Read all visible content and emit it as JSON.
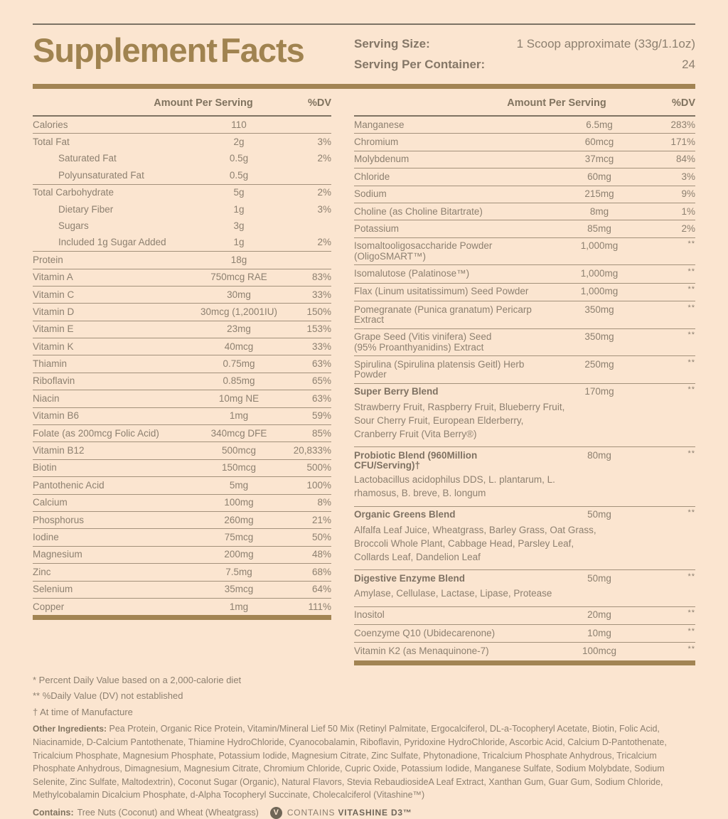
{
  "page": {
    "background": "#fbe5d0",
    "accent_gold": "#a28453",
    "text_color": "#8d8070"
  },
  "header": {
    "title": "Supplement Facts",
    "serving_size_label": "Serving Size:",
    "serving_size_value": "1 Scoop approximate (33g/1.1oz)",
    "servings_per_container_label": "Serving Per Container:",
    "servings_per_container_value": "24"
  },
  "column_headers": {
    "amount": "Amount Per Serving",
    "dv": "%DV"
  },
  "left_rows": [
    {
      "name": "Calories",
      "amount": "110",
      "dv": ""
    },
    {
      "name": "Total Fat",
      "amount": "2g",
      "dv": "3%"
    },
    {
      "name": "Saturated Fat",
      "amount": "0.5g",
      "dv": "2%",
      "indent": true
    },
    {
      "name": "Polyunsaturated Fat",
      "amount": "0.5g",
      "dv": "",
      "indent": true
    },
    {
      "name": "Total Carbohydrate",
      "amount": "5g",
      "dv": "2%"
    },
    {
      "name": "Dietary Fiber",
      "amount": "1g",
      "dv": "3%",
      "indent": true
    },
    {
      "name": "Sugars",
      "amount": "3g",
      "dv": "",
      "indent": true
    },
    {
      "name": "Included 1g Sugar Added",
      "amount": "1g",
      "dv": "2%",
      "indent": true
    },
    {
      "name": "Protein",
      "amount": "18g",
      "dv": ""
    },
    {
      "name": "Vitamin A",
      "amount": "750mcg RAE",
      "dv": "83%"
    },
    {
      "name": "Vitamin C",
      "amount": "30mg",
      "dv": "33%"
    },
    {
      "name": "Vitamin D",
      "amount": "30mcg (1,2001IU)",
      "dv": "150%"
    },
    {
      "name": "Vitamin E",
      "amount": "23mg",
      "dv": "153%"
    },
    {
      "name": "Vitamin K",
      "amount": "40mcg",
      "dv": "33%"
    },
    {
      "name": "Thiamin",
      "amount": "0.75mg",
      "dv": "63%"
    },
    {
      "name": "Riboflavin",
      "amount": "0.85mg",
      "dv": "65%"
    },
    {
      "name": "Niacin",
      "amount": "10mg NE",
      "dv": "63%"
    },
    {
      "name": "Vitamin B6",
      "amount": "1mg",
      "dv": "59%"
    },
    {
      "name": "Folate (as 200mcg Folic Acid)",
      "amount": "340mcg DFE",
      "dv": "85%"
    },
    {
      "name": "Vitamin B12",
      "amount": "500mcg",
      "dv": "20,833%"
    },
    {
      "name": "Biotin",
      "amount": "150mcg",
      "dv": "500%"
    },
    {
      "name": "Pantothenic Acid",
      "amount": "5mg",
      "dv": "100%"
    },
    {
      "name": "Calcium",
      "amount": "100mg",
      "dv": "8%"
    },
    {
      "name": "Phosphorus",
      "amount": "260mg",
      "dv": "21%"
    },
    {
      "name": "Iodine",
      "amount": "75mcg",
      "dv": "50%"
    },
    {
      "name": "Magnesium",
      "amount": "200mg",
      "dv": "48%"
    },
    {
      "name": "Zinc",
      "amount": "7.5mg",
      "dv": "68%"
    },
    {
      "name": "Selenium",
      "amount": "35mcg",
      "dv": "64%"
    },
    {
      "name": "Copper",
      "amount": "1mg",
      "dv": "111%"
    }
  ],
  "right_rows": [
    {
      "name": "Manganese",
      "amount": "6.5mg",
      "dv": "283%"
    },
    {
      "name": "Chromium",
      "amount": "60mcg",
      "dv": "171%"
    },
    {
      "name": "Molybdenum",
      "amount": "37mcg",
      "dv": "84%"
    },
    {
      "name": "Chloride",
      "amount": "60mg",
      "dv": "3%"
    },
    {
      "name": "Sodium",
      "amount": "215mg",
      "dv": "9%"
    },
    {
      "name": "Choline (as Choline Bitartrate)",
      "amount": "8mg",
      "dv": "1%"
    },
    {
      "name": "Potassium",
      "amount": "85mg",
      "dv": "2%"
    },
    {
      "name": "Isomaltooligosaccharide Powder (OligoSMART™)",
      "amount": "1,000mg",
      "dv": "**"
    },
    {
      "name": "Isomalutose (Palatinose™)",
      "amount": "1,000mg",
      "dv": "**"
    },
    {
      "name": "Flax (Linum usitatissimum) Seed Powder",
      "amount": "1,000mg",
      "dv": "**"
    },
    {
      "name": "Pomegranate (Punica granatum) Pericarp Extract",
      "amount": "350mg",
      "dv": "**"
    },
    {
      "name": "Grape Seed (Vitis vinifera) Seed\n(95% Proanthyanidins) Extract",
      "amount": "350mg",
      "dv": "**"
    },
    {
      "name": "Spirulina (Spirulina platensis Geitl) Herb Powder",
      "amount": "250mg",
      "dv": "**"
    },
    {
      "name": "Super Berry Blend",
      "amount": "170mg",
      "dv": "**",
      "bold": true,
      "desc": "Strawberry Fruit, Raspberry Fruit, Blueberry Fruit,\nSour Cherry Fruit, European Elderberry,\nCranberry Fruit  (Vita Berry®)"
    },
    {
      "name": "Probiotic Blend (960Million CFU/Serving)†",
      "amount": "80mg",
      "dv": "**",
      "bold": true,
      "desc": "Lactobacillus acidophilus DDS, L. plantarum, L.\nrhamosus, B. breve, B. longum"
    },
    {
      "name": "Organic Greens Blend",
      "amount": "50mg",
      "dv": "**",
      "bold": true,
      "desc": "Alfalfa Leaf Juice, Wheatgrass, Barley Grass, Oat Grass,\nBroccoli Whole Plant, Cabbage Head, Parsley Leaf,\nCollards Leaf, Dandelion Leaf"
    },
    {
      "name": "Digestive Enzyme Blend",
      "amount": "50mg",
      "dv": "**",
      "bold": true,
      "desc": "Amylase, Cellulase, Lactase, Lipase, Protease"
    },
    {
      "name": "Inositol",
      "amount": "20mg",
      "dv": "**"
    },
    {
      "name": "Coenzyme Q10 (Ubidecarenone)",
      "amount": "10mg",
      "dv": "**"
    },
    {
      "name": "Vitamin K2 (as Menaquinone-7)",
      "amount": "100mcg",
      "dv": "**"
    }
  ],
  "footnotes": [
    "* Percent Daily Value based on a 2,000-calorie diet",
    "** %Daily Value (DV) not established",
    "† At time of Manufacture"
  ],
  "other_ingredients": {
    "label": "Other Ingredients:",
    "text": "Pea Protein, Organic Rice Protein, Vitamin/Mineral Lief 50 Mix (Retinyl Palmitate, Ergocalciferol, DL-a-Tocopheryl Acetate, Biotin, Folic Acid, Niacinamide, D-Calcium Pantothenate, Thiamine HydroChloride, Cyanocobalamin, Riboflavin, Pyridoxine HydroChloride, Ascorbic Acid, Calcium D-Pantothenate, Tricalcium Phosphate, Magnesium Phosphate, Potassium Iodide, Magnesium Citrate, Zinc Sulfate, Phytonadione, Tricalcium Phosphate Anhydrous, Tricalcium Phosphate Anhydrous, Dimagnesium, Magnesium Citrate, Chromium Chloride, Cupric Oxide, Potassium Iodide, Manganese Sulfate, Sodium Molybdate, Sodium Selenite, Zinc Sulfate, Maltodextrin), Coconut Sugar (Organic), Natural Flavors, Stevia RebaudiosideA Leaf Extract, Xanthan Gum, Guar Gum, Sodium Chloride, Methylcobalamin Dicalcium Phosphate, d-Alpha Tocopheryl Succinate, Cholecalciferol (Vitashine™)"
  },
  "contains": {
    "label": "Contains:",
    "text": "Tree Nuts (Coconut) and Wheat (Wheatgrass)",
    "badge_glyph": "V",
    "badge_text_regular": "CONTAINS ",
    "badge_text_bold": "VITASHINE D3™"
  }
}
